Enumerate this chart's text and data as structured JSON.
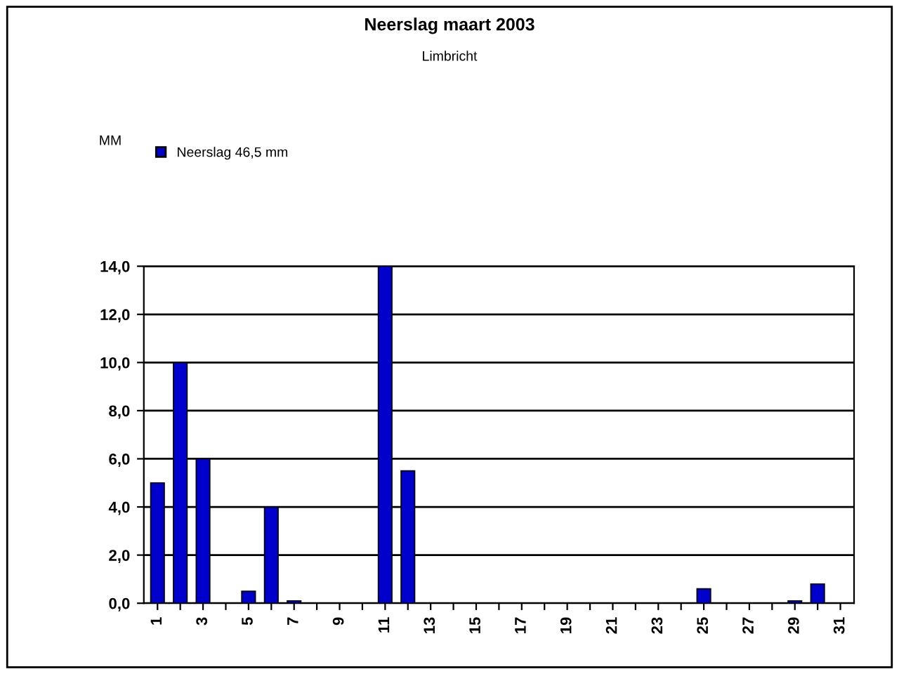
{
  "chart_data": {
    "type": "bar",
    "title": "Neerslag maart 2003",
    "subtitle": "Limbricht",
    "annotations": [
      "MM"
    ],
    "categories": [
      "1",
      null,
      "3",
      null,
      "5",
      null,
      "7",
      null,
      "9",
      null,
      "11",
      null,
      "13",
      null,
      "15",
      null,
      "17",
      null,
      "19",
      null,
      "21",
      null,
      "23",
      null,
      "25",
      null,
      "27",
      null,
      "29",
      null,
      "31"
    ],
    "series": [
      {
        "name": "Neerslag 46,5 mm",
        "color": "#0000cc",
        "values": [
          5.0,
          10.0,
          6.0,
          0,
          0.5,
          4.0,
          0.1,
          0,
          0,
          0,
          14.0,
          5.5,
          0,
          0,
          0,
          0,
          0,
          0,
          0,
          0,
          0,
          0,
          0,
          0,
          0.6,
          0,
          0,
          0,
          0.1,
          0.8,
          0
        ]
      }
    ],
    "ylim": [
      0,
      14
    ],
    "yticks": [
      {
        "value": 0,
        "label": "0,0"
      },
      {
        "value": 2,
        "label": "2,0"
      },
      {
        "value": 4,
        "label": "4,0"
      },
      {
        "value": 6,
        "label": "6,0"
      },
      {
        "value": 8,
        "label": "8,0"
      },
      {
        "value": 10,
        "label": "10,0"
      },
      {
        "value": 12,
        "label": "12,0"
      },
      {
        "value": 14,
        "label": "14,0"
      }
    ],
    "grid": "y",
    "legend": "top left"
  }
}
